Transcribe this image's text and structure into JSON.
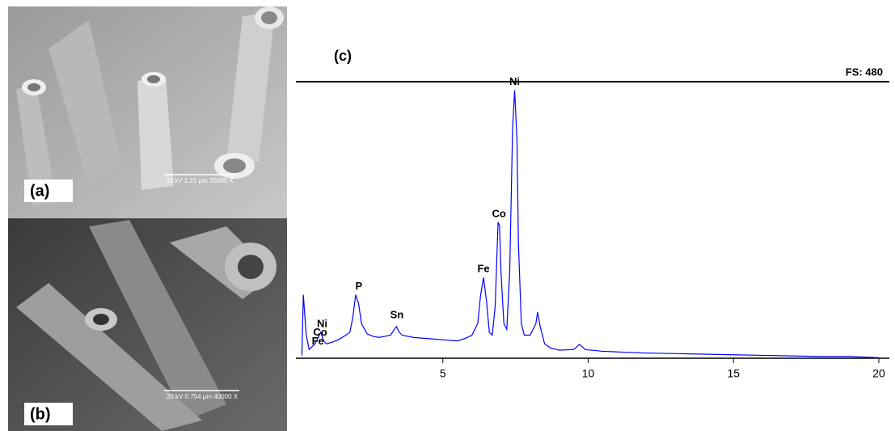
{
  "panels": [
    {
      "label": "(a)",
      "scale_bar": "20 kV   1.21 µm   25000 X"
    },
    {
      "label": "(b)",
      "scale_bar": "20 kV   0.754 µm   40000 X"
    }
  ],
  "chart_data": {
    "type": "line",
    "title": "(c)",
    "full_scale": "FS: 480",
    "x": [
      0.15,
      0.2,
      0.3,
      0.4,
      0.5,
      0.6,
      0.7,
      0.8,
      0.9,
      1.0,
      1.2,
      1.4,
      1.6,
      1.8,
      1.9,
      2.0,
      2.1,
      2.2,
      2.4,
      2.6,
      2.8,
      3.0,
      3.2,
      3.4,
      3.5,
      3.6,
      3.8,
      4.0,
      4.5,
      5.0,
      5.5,
      5.8,
      6.0,
      6.2,
      6.3,
      6.4,
      6.5,
      6.6,
      6.7,
      6.8,
      6.9,
      6.95,
      7.0,
      7.1,
      7.2,
      7.3,
      7.4,
      7.47,
      7.55,
      7.6,
      7.7,
      7.8,
      8.0,
      8.2,
      8.26,
      8.35,
      8.5,
      8.7,
      9.0,
      9.5,
      9.7,
      9.9,
      10.5,
      11,
      12,
      13,
      14,
      15,
      16,
      17,
      18,
      19,
      20
    ],
    "series": [
      {
        "color": "#0000ff",
        "values": [
          5,
          110,
          40,
          15,
          20,
          25,
          35,
          45,
          30,
          25,
          28,
          32,
          38,
          45,
          70,
          110,
          95,
          60,
          42,
          38,
          36,
          38,
          40,
          55,
          45,
          40,
          38,
          36,
          34,
          32,
          30,
          35,
          40,
          60,
          110,
          140,
          100,
          45,
          40,
          90,
          236,
          230,
          150,
          60,
          50,
          150,
          400,
          465,
          380,
          200,
          60,
          40,
          40,
          60,
          80,
          55,
          25,
          18,
          14,
          15,
          24,
          15,
          12,
          11,
          9,
          8,
          7,
          6,
          5,
          4,
          3,
          3,
          1
        ]
      }
    ],
    "annotations": [
      {
        "text": "Ni",
        "x": 7.47,
        "y": 465
      },
      {
        "text": "Co",
        "x": 6.93,
        "y": 236
      },
      {
        "text": "Fe",
        "x": 6.4,
        "y": 140
      },
      {
        "text": "P",
        "x": 2.11,
        "y": 110
      },
      {
        "text": "Sn",
        "x": 3.42,
        "y": 60
      },
      {
        "text": "Ni",
        "x": 0.85,
        "y": 45
      },
      {
        "text": "Co",
        "x": 0.78,
        "y": 30
      },
      {
        "text": "Fe",
        "x": 0.7,
        "y": 15
      }
    ],
    "xlim": [
      0,
      20
    ],
    "ylim": [
      0,
      480
    ],
    "xticks": [
      5,
      10,
      15,
      20
    ]
  }
}
